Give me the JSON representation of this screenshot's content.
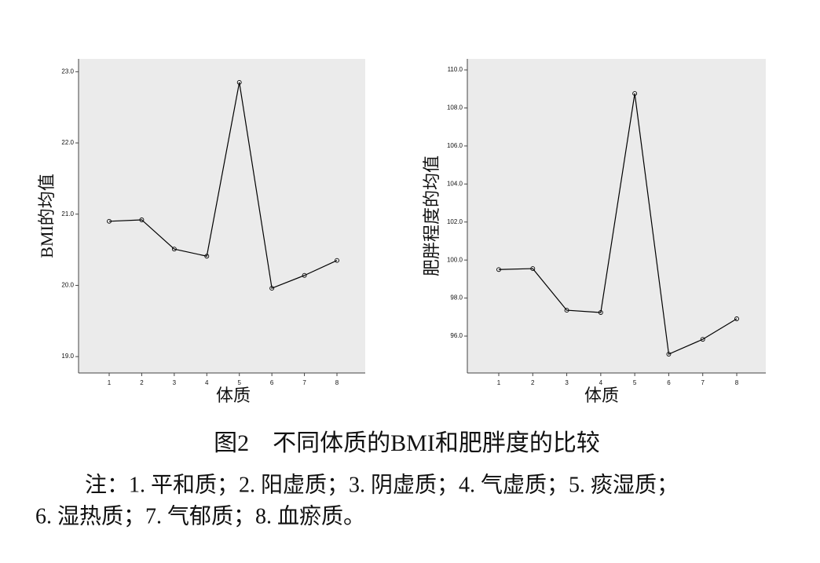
{
  "chart_data": [
    {
      "type": "line",
      "y_label": "BMI的均值",
      "x_label": "体质",
      "categories": [
        "1",
        "2",
        "3",
        "4",
        "5",
        "6",
        "7",
        "8"
      ],
      "values": [
        20.9,
        20.92,
        20.51,
        20.41,
        22.85,
        19.96,
        20.14,
        20.35
      ],
      "color": "#000000",
      "ylim": [
        18.77,
        23.18
      ],
      "yticks": [
        {
          "value": 19,
          "label": "19.0"
        },
        {
          "value": 20,
          "label": "20.0"
        },
        {
          "value": 21,
          "label": "21.0"
        },
        {
          "value": 22,
          "label": "22.0"
        },
        {
          "value": 23,
          "label": "23.0"
        }
      ],
      "grid": false
    },
    {
      "type": "line",
      "y_label": "肥胖程度的均值",
      "x_label": "体质",
      "categories": [
        "1",
        "2",
        "3",
        "4",
        "5",
        "6",
        "7",
        "8"
      ],
      "values": [
        99.5,
        99.55,
        97.36,
        97.24,
        108.76,
        95.05,
        95.83,
        96.91
      ],
      "color": "#000000",
      "ylim": [
        94.06,
        110.58
      ],
      "yticks": [
        {
          "value": 96,
          "label": "96.0"
        },
        {
          "value": 98,
          "label": "98.0"
        },
        {
          "value": 100,
          "label": "100.0"
        },
        {
          "value": 102,
          "label": "102.0"
        },
        {
          "value": 104,
          "label": "104.0"
        },
        {
          "value": 106,
          "label": "106.0"
        },
        {
          "value": 108,
          "label": "108.0"
        },
        {
          "value": 110,
          "label": "110.0"
        }
      ],
      "grid": false
    }
  ],
  "caption": "图2　不同体质的BMI和肥胖度的比较",
  "note": [
    "注：1. 平和质；2. 阳虚质；3. 阴虚质；4. 气虚质；5. 痰湿质；",
    "6. 湿热质；7. 气郁质；8. 血瘀质。"
  ]
}
